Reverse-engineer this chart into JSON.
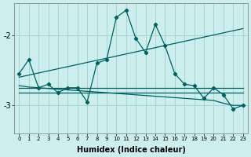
{
  "xlabel": "Humidex (Indice chaleur)",
  "background_color": "#cceeed",
  "grid_color": "#aad4d0",
  "line_color": "#006060",
  "x_values": [
    0,
    1,
    2,
    3,
    4,
    5,
    6,
    7,
    8,
    9,
    10,
    11,
    12,
    13,
    14,
    15,
    16,
    17,
    18,
    19,
    20,
    21,
    22,
    23
  ],
  "main_line": [
    -2.55,
    -2.35,
    -2.75,
    -2.7,
    -2.82,
    -2.75,
    -2.75,
    -2.95,
    -2.4,
    -2.35,
    -1.75,
    -1.65,
    -2.05,
    -2.25,
    -1.85,
    -2.15,
    -2.55,
    -2.7,
    -2.72,
    -2.9,
    -2.75,
    -2.85,
    -3.05,
    -3.0
  ],
  "trend_up": [
    -2.6,
    -2.57,
    -2.54,
    -2.51,
    -2.48,
    -2.45,
    -2.42,
    -2.39,
    -2.36,
    -2.33,
    -2.3,
    -2.27,
    -2.24,
    -2.21,
    -2.18,
    -2.15,
    -2.12,
    -2.09,
    -2.06,
    -2.03,
    -2.0,
    -1.97,
    -1.94,
    -1.91
  ],
  "flat_line1": [
    -2.75,
    -2.75,
    -2.75,
    -2.75,
    -2.75,
    -2.75,
    -2.75,
    -2.75,
    -2.75,
    -2.75,
    -2.75,
    -2.75,
    -2.75,
    -2.75,
    -2.75,
    -2.75,
    -2.75,
    -2.75,
    -2.75,
    -2.75,
    -2.75,
    -2.75,
    -2.75,
    -2.75
  ],
  "flat_line2": [
    -2.82,
    -2.82,
    -2.82,
    -2.82,
    -2.82,
    -2.82,
    -2.82,
    -2.82,
    -2.82,
    -2.82,
    -2.82,
    -2.82,
    -2.82,
    -2.82,
    -2.82,
    -2.82,
    -2.82,
    -2.82,
    -2.82,
    -2.82,
    -2.82,
    -2.82,
    -2.82,
    -2.82
  ],
  "decline_line": [
    -2.72,
    -2.74,
    -2.75,
    -2.76,
    -2.77,
    -2.78,
    -2.79,
    -2.8,
    -2.81,
    -2.82,
    -2.83,
    -2.84,
    -2.85,
    -2.86,
    -2.87,
    -2.88,
    -2.89,
    -2.9,
    -2.91,
    -2.92,
    -2.93,
    -2.97,
    -3.0,
    -3.0
  ],
  "ylim": [
    -3.4,
    -1.55
  ],
  "yticks": [
    -3,
    -2
  ],
  "xlim": [
    -0.5,
    23.5
  ]
}
